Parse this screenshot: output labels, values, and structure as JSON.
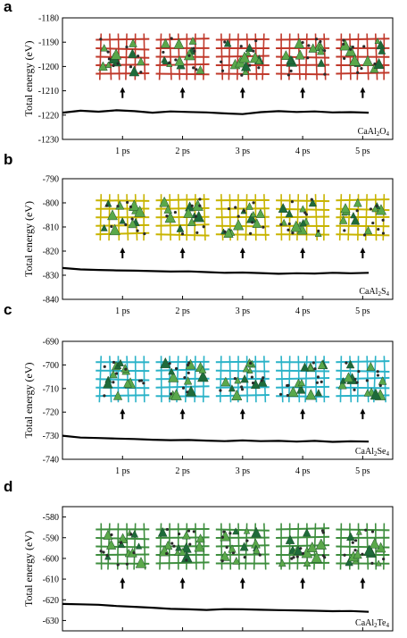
{
  "chart_data": [
    {
      "type": "line",
      "panel": "a",
      "ylabel": "Total energy (eV)",
      "formula": {
        "base": "CaAl",
        "sub1": "2",
        "mid": "O",
        "sub2": "4"
      },
      "xticks": [
        "1 ps",
        "2 ps",
        "3 ps",
        "4 ps",
        "5 ps"
      ],
      "yticks": [
        -1180,
        -1190,
        -1200,
        -1210,
        -1220,
        -1230
      ],
      "ylim": [
        -1230,
        -1180
      ],
      "xlim": [
        0,
        5.5
      ],
      "structure_color": "#c0392b",
      "x": [
        0.0,
        0.3,
        0.6,
        0.9,
        1.2,
        1.5,
        1.8,
        2.1,
        2.4,
        2.7,
        3.0,
        3.3,
        3.6,
        3.9,
        4.2,
        4.5,
        4.8,
        5.1
      ],
      "y": [
        -1219.0,
        -1218.2,
        -1218.6,
        -1218.0,
        -1218.4,
        -1219.0,
        -1218.5,
        -1218.7,
        -1218.9,
        -1219.3,
        -1219.6,
        -1218.8,
        -1218.4,
        -1218.7,
        -1218.5,
        -1218.9,
        -1218.8,
        -1219.0
      ]
    },
    {
      "type": "line",
      "panel": "b",
      "ylabel": "Total energy (eV)",
      "formula": {
        "base": "CaAl",
        "sub1": "2",
        "mid": "S",
        "sub2": "4"
      },
      "xticks": [
        "1 ps",
        "2 ps",
        "3 ps",
        "4 ps",
        "5 ps"
      ],
      "yticks": [
        -790,
        -800,
        -810,
        -820,
        -830,
        -840
      ],
      "ylim": [
        -840,
        -790
      ],
      "xlim": [
        0,
        5.5
      ],
      "structure_color": "#c8b400",
      "x": [
        0.0,
        0.3,
        0.6,
        0.9,
        1.2,
        1.5,
        1.8,
        2.1,
        2.4,
        2.7,
        3.0,
        3.3,
        3.6,
        3.9,
        4.2,
        4.5,
        4.8,
        5.1
      ],
      "y": [
        -827.0,
        -827.6,
        -827.8,
        -828.0,
        -828.1,
        -828.3,
        -828.5,
        -828.4,
        -828.7,
        -829.0,
        -828.9,
        -829.1,
        -829.4,
        -829.2,
        -829.3,
        -829.0,
        -829.2,
        -829.0
      ]
    },
    {
      "type": "line",
      "panel": "c",
      "ylabel": "Total energy (eV)",
      "formula": {
        "base": "CaAl",
        "sub1": "2",
        "mid": "Se",
        "sub2": "4"
      },
      "xticks": [
        "1 ps",
        "2 ps",
        "3 ps",
        "4 ps",
        "5 ps"
      ],
      "yticks": [
        -690,
        -700,
        -710,
        -720,
        -730,
        -740
      ],
      "ylim": [
        -740,
        -690
      ],
      "xlim": [
        0,
        5.5
      ],
      "structure_color": "#2bb3c8",
      "x": [
        0.0,
        0.3,
        0.6,
        0.9,
        1.2,
        1.5,
        1.8,
        2.1,
        2.4,
        2.7,
        3.0,
        3.3,
        3.6,
        3.9,
        4.2,
        4.5,
        4.8,
        5.1
      ],
      "y": [
        -730.0,
        -730.8,
        -731.0,
        -731.2,
        -731.4,
        -731.7,
        -731.9,
        -731.8,
        -732.1,
        -732.3,
        -732.0,
        -732.3,
        -732.2,
        -732.5,
        -732.2,
        -732.6,
        -732.4,
        -732.5
      ]
    },
    {
      "type": "line",
      "panel": "d",
      "ylabel": "Total energy (eV)",
      "formula": {
        "base": "CaAl",
        "sub1": "2",
        "mid": "Te",
        "sub2": "4"
      },
      "xticks": [
        "1 ps",
        "2 ps",
        "3 ps",
        "4 ps",
        "5 ps"
      ],
      "yticks": [
        -580,
        -590,
        -600,
        -610,
        -620,
        -630
      ],
      "ylim": [
        -635,
        -575
      ],
      "xlim": [
        0,
        5.5
      ],
      "structure_color": "#3e8e3e",
      "x": [
        0.0,
        0.3,
        0.6,
        0.9,
        1.2,
        1.5,
        1.8,
        2.1,
        2.4,
        2.7,
        3.0,
        3.3,
        3.6,
        3.9,
        4.2,
        4.5,
        4.8,
        5.1
      ],
      "y": [
        -622.0,
        -622.2,
        -622.4,
        -623.0,
        -623.4,
        -623.8,
        -624.4,
        -624.6,
        -624.9,
        -624.5,
        -624.6,
        -624.8,
        -625.0,
        -625.1,
        -625.3,
        -625.5,
        -625.4,
        -625.8
      ]
    }
  ]
}
